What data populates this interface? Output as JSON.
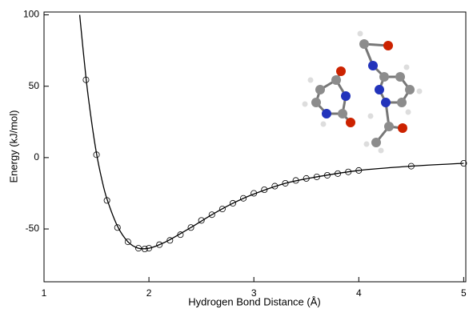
{
  "chart_data": {
    "type": "line",
    "xlabel": "Hydrogen Bond Distance (Å)",
    "ylabel": "Energy (kJ/mol)",
    "xlim": [
      1,
      5.02
    ],
    "ylim": [
      -87,
      102
    ],
    "xticks": [
      1,
      2,
      3,
      4,
      5
    ],
    "yticks": [
      -50,
      0,
      50,
      100
    ],
    "series": [
      {
        "color": "#000000",
        "marker": "none",
        "line": true,
        "x": [
          1.34,
          1.4,
          1.45,
          1.5,
          1.55,
          1.6,
          1.7,
          1.8,
          1.9,
          2.0,
          2.1,
          2.2,
          2.4,
          2.6,
          2.8,
          3.0,
          3.3,
          3.6,
          4.0,
          4.5,
          5.0
        ],
        "values": [
          100,
          56,
          27,
          3,
          -15,
          -29,
          -48,
          -59,
          -63.5,
          -63.5,
          -61,
          -57.5,
          -49,
          -40,
          -32,
          -25.5,
          -18,
          -13.5,
          -9,
          -6,
          -4
        ]
      },
      {
        "color": "#000000",
        "marker": "circle",
        "line": false,
        "x": [
          1.4,
          1.5,
          1.6,
          1.7,
          1.8,
          1.9,
          1.96,
          2.0,
          2.1,
          2.2,
          2.3,
          2.4,
          2.5,
          2.6,
          2.7,
          2.8,
          2.9,
          3.0,
          3.1,
          3.2,
          3.3,
          3.4,
          3.5,
          3.6,
          3.7,
          3.8,
          3.9,
          4.0,
          4.5,
          5.0
        ],
        "values": [
          54.5,
          2,
          -30,
          -49,
          -59,
          -63.5,
          -64,
          -63.5,
          -61,
          -58,
          -54,
          -49,
          -44,
          -40,
          -36,
          -32,
          -28.5,
          -25,
          -22.5,
          -20,
          -18,
          -16,
          -14.6,
          -13.5,
          -12.4,
          -11.2,
          -10,
          -9,
          -6,
          -4
        ]
      }
    ]
  }
}
